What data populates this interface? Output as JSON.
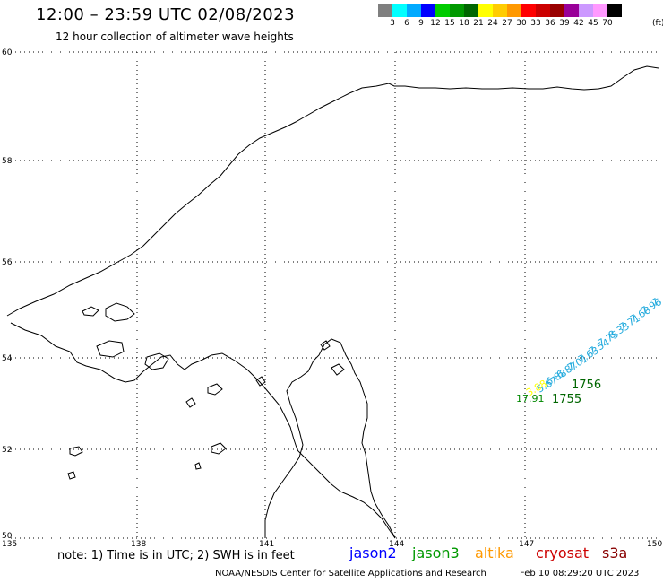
{
  "header": {
    "title": "12:00 – 23:59 UTC 02/08/2023",
    "subtitle": "12 hour collection of altimeter wave heights"
  },
  "color_scale": {
    "labels": [
      "3",
      "6",
      "9",
      "12",
      "15",
      "18",
      "21",
      "24",
      "27",
      "30",
      "33",
      "36",
      "39",
      "42",
      "45",
      "70"
    ],
    "unit": "(ft)",
    "colors": [
      "#7f7f7f",
      "#00ffff",
      "#00aaff",
      "#0000ff",
      "#00cc00",
      "#009900",
      "#006600",
      "#ffff00",
      "#ffcc00",
      "#ff9900",
      "#ff0000",
      "#cc0000",
      "#990000",
      "#990099",
      "#cc99ff",
      "#ff99ff",
      "#000000"
    ]
  },
  "map": {
    "lat_labels": [
      "60",
      "58",
      "56",
      "54",
      "52",
      "50"
    ],
    "lon_labels": [
      "135",
      "138",
      "141",
      "144",
      "147",
      "150"
    ],
    "swh_labels": [
      {
        "text": "7.",
        "color": "#22aadd"
      },
      {
        "text": "7.96",
        "color": "#22aadd"
      },
      {
        "text": "7.68",
        "color": "#22aadd"
      },
      {
        "text": "7.71",
        "color": "#22aadd"
      },
      {
        "text": "8.33",
        "color": "#22aadd"
      },
      {
        "text": "7.75",
        "color": "#22aadd"
      },
      {
        "text": "7.54",
        "color": "#22aadd"
      },
      {
        "text": "7.63",
        "color": "#22aadd"
      },
      {
        "text": "7.01",
        "color": "#22aadd"
      },
      {
        "text": "6.87",
        "color": "#22aadd"
      },
      {
        "text": "6.88",
        "color": "#22aadd"
      },
      {
        "text": "5.67",
        "color": "#22aadd"
      },
      {
        "text": "3.88",
        "color": "#ffff00"
      },
      {
        "text": "17.91",
        "color": "#008800"
      }
    ],
    "time_labels": [
      {
        "text": "1756",
        "color": "#006600"
      },
      {
        "text": "1755",
        "color": "#006600"
      }
    ]
  },
  "note": "note:  1) Time is in UTC;  2) SWH is in feet",
  "legend": [
    {
      "text": "jason2",
      "color": "#0000ff"
    },
    {
      "text": "jason3",
      "color": "#009900"
    },
    {
      "text": "altika",
      "color": "#ff9900"
    },
    {
      "text": "cryosat",
      "color": "#cc0000"
    },
    {
      "text": "s3a",
      "color": "#880000"
    }
  ],
  "footer": {
    "credit": "NOAA/NESDIS Center for Satellite Applications and Research",
    "generated": "Feb 10 08:29:20 UTC 2023"
  }
}
